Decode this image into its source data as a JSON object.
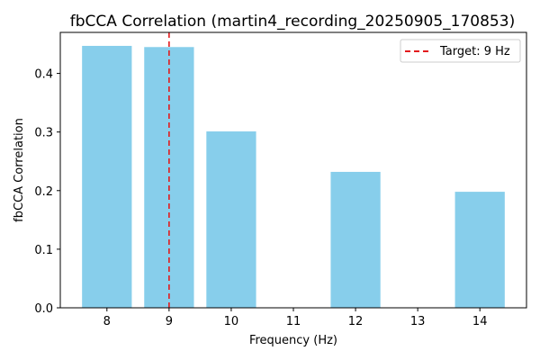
{
  "chart_data": {
    "type": "bar",
    "title": "fbCCA Correlation (martin4_recording_20250905_170853)",
    "xlabel": "Frequency (Hz)",
    "ylabel": "fbCCA Correlation",
    "x": [
      8,
      9,
      10,
      12,
      14
    ],
    "values": [
      0.447,
      0.445,
      0.301,
      0.232,
      0.198
    ],
    "xticks": [
      "8",
      "9",
      "10",
      "11",
      "12",
      "13",
      "14"
    ],
    "yticks": [
      "0.0",
      "0.1",
      "0.2",
      "0.3",
      "0.4"
    ],
    "xlim": [
      7.25,
      14.75
    ],
    "ylim": [
      0,
      0.47
    ],
    "bar_color": "#87ceeb",
    "grid": false,
    "reference_line": {
      "x": 9,
      "style": "dashed",
      "color": "#e31a1c",
      "label": "Target: 9 Hz"
    },
    "legend": {
      "placement": "top-right",
      "entries": [
        "Target: 9 Hz"
      ]
    }
  }
}
